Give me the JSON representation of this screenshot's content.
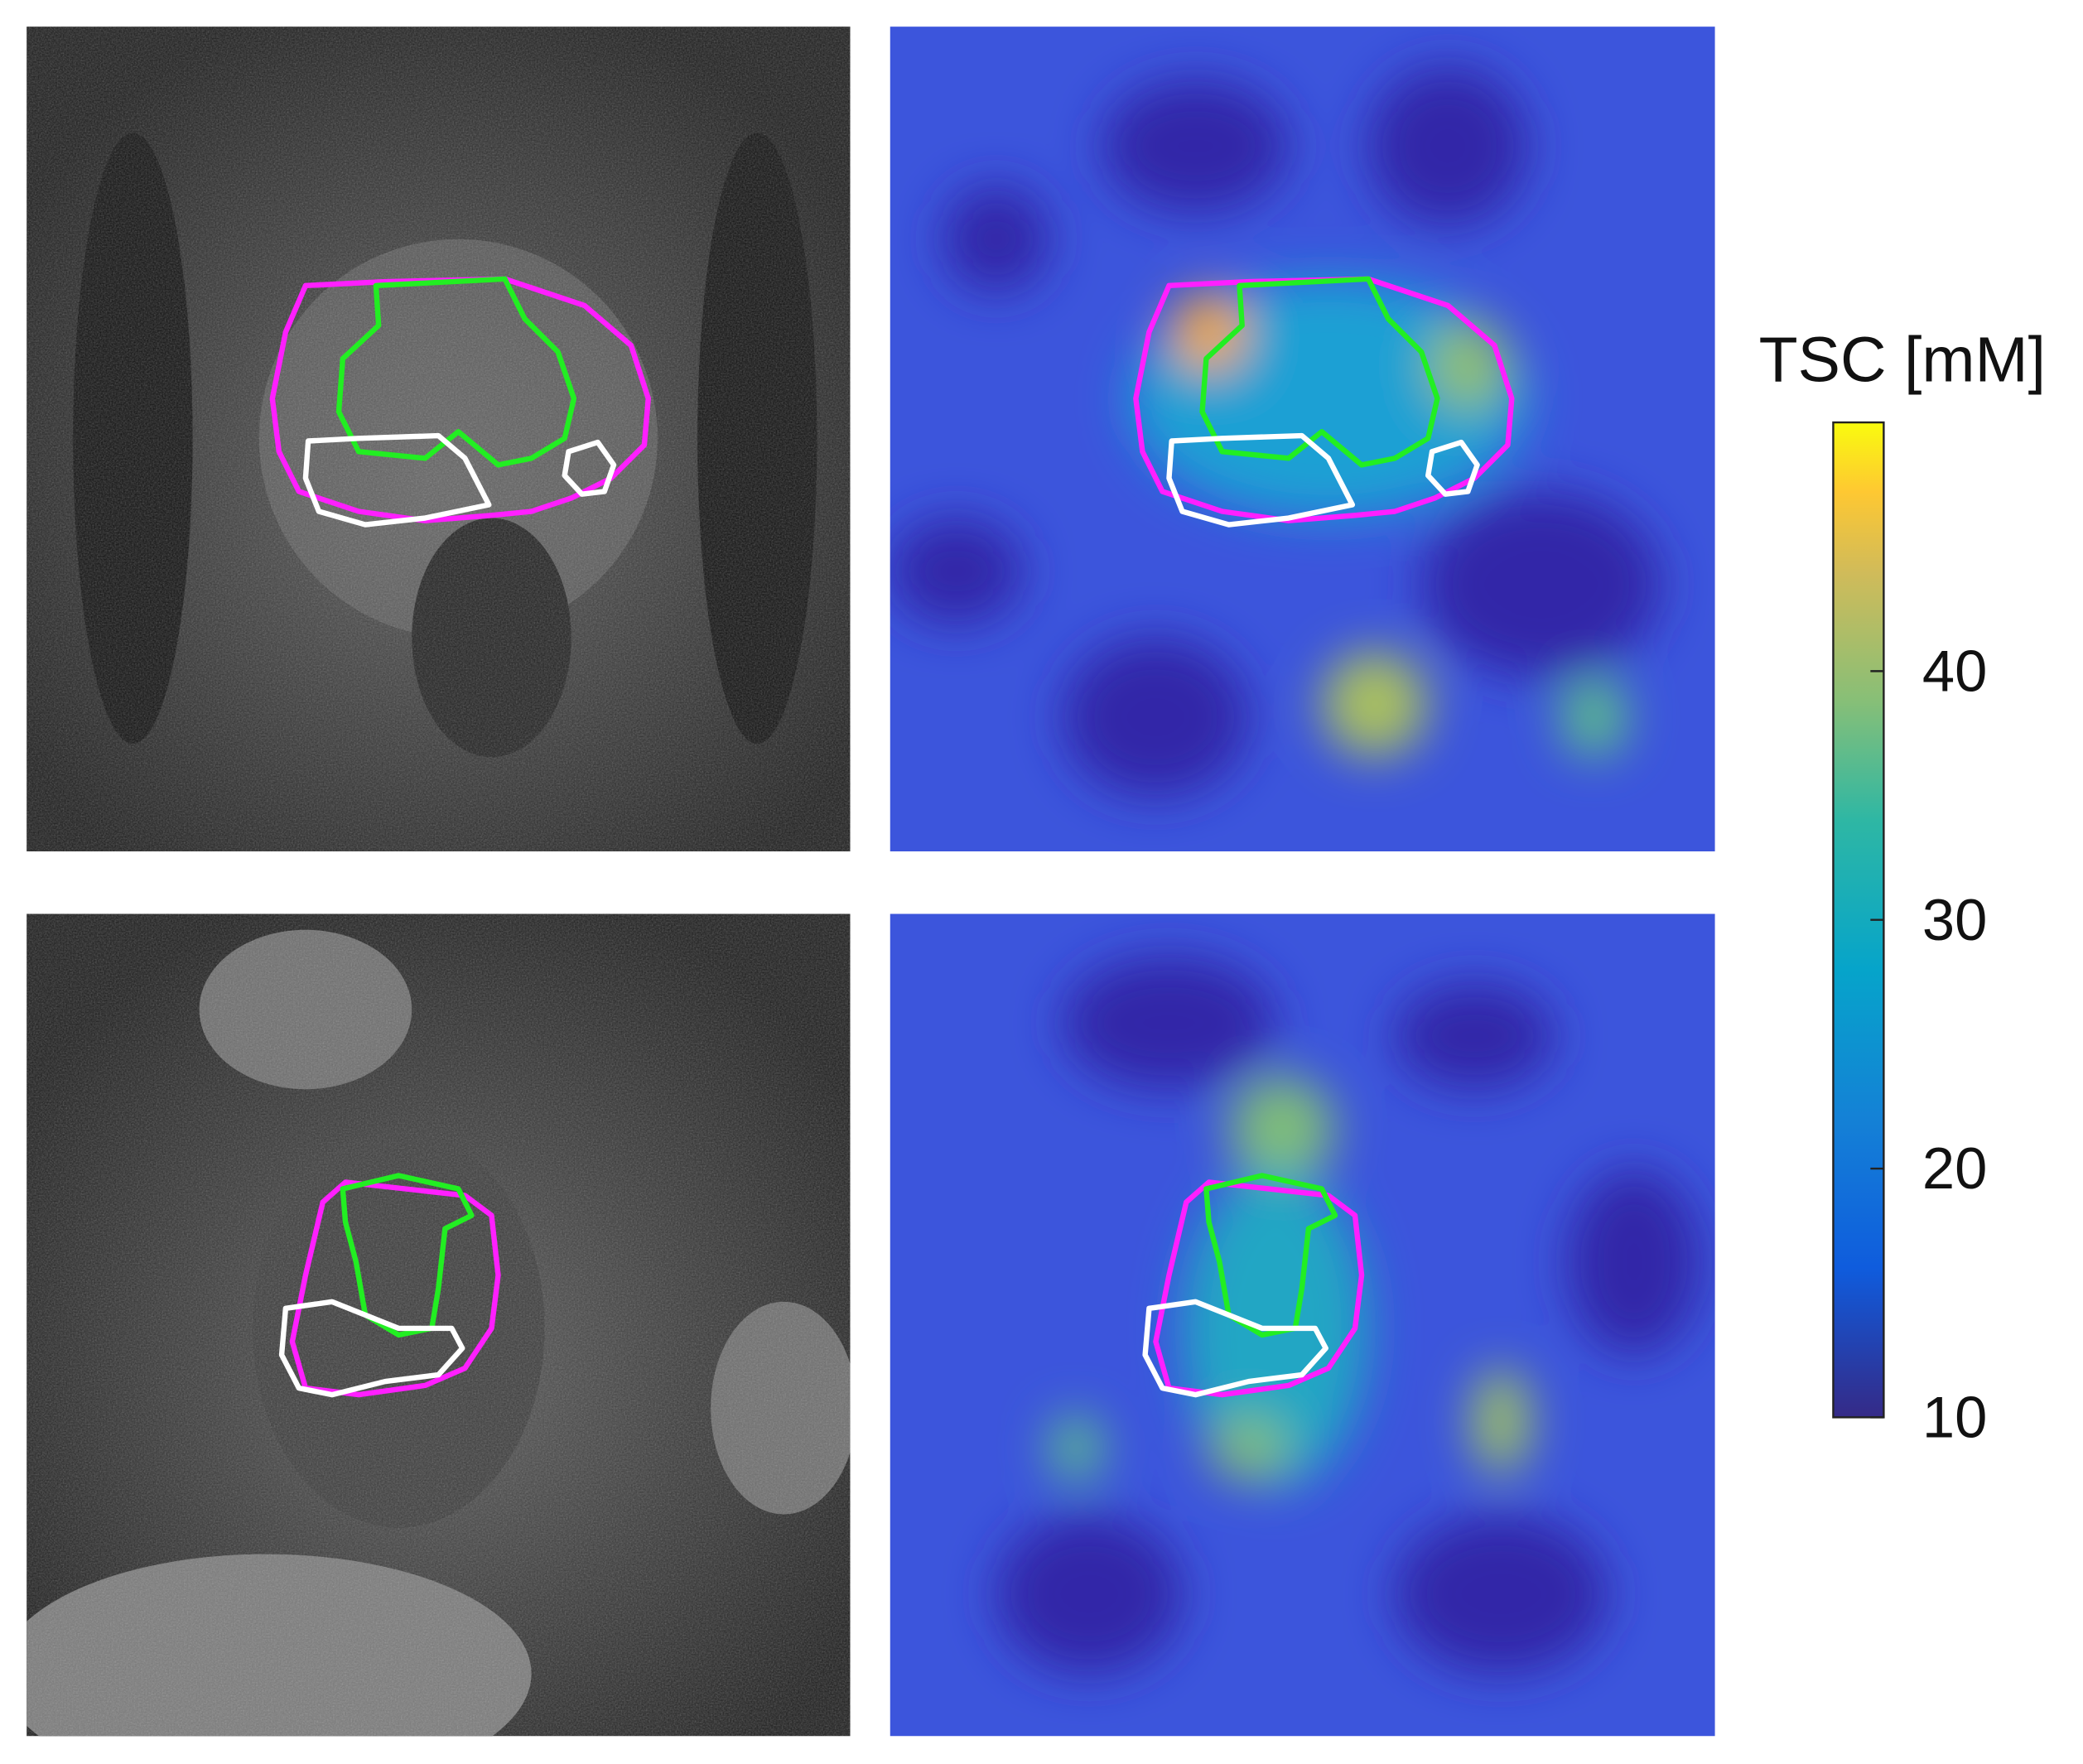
{
  "colorbar": {
    "label": "TSC [mM]",
    "lim": [
      10,
      50
    ],
    "ticks": [
      10,
      20,
      30,
      40
    ]
  }
}
